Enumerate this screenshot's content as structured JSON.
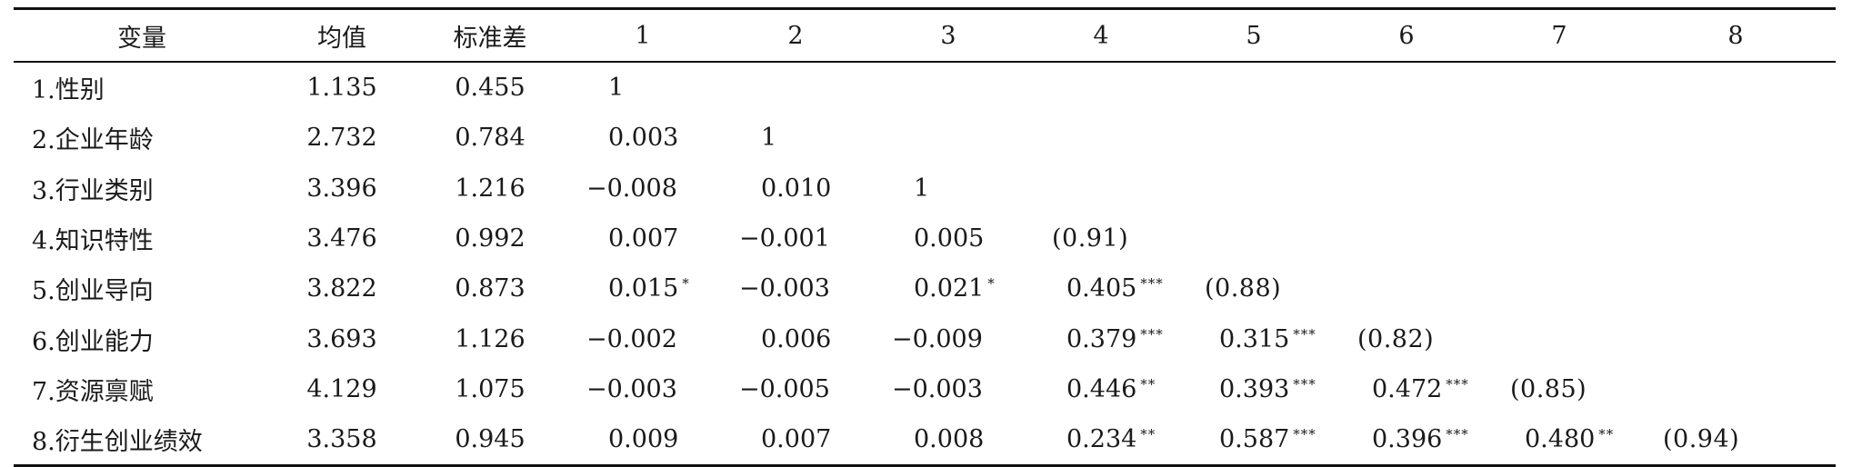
{
  "table": {
    "headers": [
      "变量",
      "均值",
      "标准差",
      "1",
      "2",
      "3",
      "4",
      "5",
      "6",
      "7",
      "8"
    ],
    "rows": [
      {
        "variable": "1.性别",
        "mean": "1.135",
        "sd": "0.455",
        "cells": [
          {
            "v": "1",
            "s": ""
          }
        ]
      },
      {
        "variable": "2.企业年龄",
        "mean": "2.732",
        "sd": "0.784",
        "cells": [
          {
            "v": "0.003",
            "s": ""
          },
          {
            "v": "1",
            "s": ""
          }
        ]
      },
      {
        "variable": "3.行业类别",
        "mean": "3.396",
        "sd": "1.216",
        "cells": [
          {
            "v": "−0.008",
            "s": ""
          },
          {
            "v": "0.010",
            "s": ""
          },
          {
            "v": "1",
            "s": ""
          }
        ]
      },
      {
        "variable": "4.知识特性",
        "mean": "3.476",
        "sd": "0.992",
        "cells": [
          {
            "v": "0.007",
            "s": ""
          },
          {
            "v": "−0.001",
            "s": ""
          },
          {
            "v": "0.005",
            "s": ""
          },
          {
            "v": "(0.91)",
            "s": ""
          }
        ]
      },
      {
        "variable": "5.创业导向",
        "mean": "3.822",
        "sd": "0.873",
        "cells": [
          {
            "v": "0.015",
            "s": "*"
          },
          {
            "v": "−0.003",
            "s": ""
          },
          {
            "v": "0.021",
            "s": "*"
          },
          {
            "v": "0.405",
            "s": "***"
          },
          {
            "v": "(0.88)",
            "s": ""
          }
        ]
      },
      {
        "variable": "6.创业能力",
        "mean": "3.693",
        "sd": "1.126",
        "cells": [
          {
            "v": "−0.002",
            "s": ""
          },
          {
            "v": "0.006",
            "s": ""
          },
          {
            "v": "−0.009",
            "s": ""
          },
          {
            "v": "0.379",
            "s": "***"
          },
          {
            "v": "0.315",
            "s": "***"
          },
          {
            "v": "(0.82)",
            "s": ""
          }
        ]
      },
      {
        "variable": "7.资源禀赋",
        "mean": "4.129",
        "sd": "1.075",
        "cells": [
          {
            "v": "−0.003",
            "s": ""
          },
          {
            "v": "−0.005",
            "s": ""
          },
          {
            "v": "−0.003",
            "s": ""
          },
          {
            "v": "0.446",
            "s": "**"
          },
          {
            "v": "0.393",
            "s": "***"
          },
          {
            "v": "0.472",
            "s": "***"
          },
          {
            "v": "(0.85)",
            "s": ""
          }
        ]
      },
      {
        "variable": "8.衍生创业绩效",
        "mean": "3.358",
        "sd": "0.945",
        "cells": [
          {
            "v": "0.009",
            "s": ""
          },
          {
            "v": "0.007",
            "s": ""
          },
          {
            "v": "0.008",
            "s": ""
          },
          {
            "v": "0.234",
            "s": "**"
          },
          {
            "v": "0.587",
            "s": "***"
          },
          {
            "v": "0.396",
            "s": "***"
          },
          {
            "v": "0.480",
            "s": "**"
          },
          {
            "v": "(0.94)",
            "s": ""
          }
        ]
      }
    ]
  }
}
